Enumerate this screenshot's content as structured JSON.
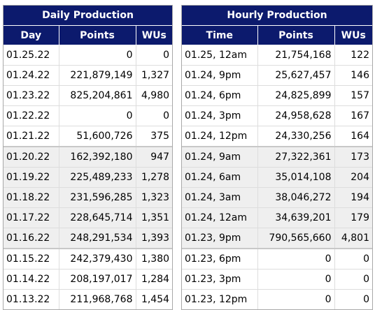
{
  "daily": {
    "title": "Daily Production",
    "columns": [
      "Day",
      "Points",
      "WUs"
    ],
    "rows": [
      {
        "day": "01.25.22",
        "points": "0",
        "wus": "0"
      },
      {
        "day": "01.24.22",
        "points": "221,879,149",
        "wus": "1,327"
      },
      {
        "day": "01.23.22",
        "points": "825,204,861",
        "wus": "4,980"
      },
      {
        "day": "01.22.22",
        "points": "0",
        "wus": "0"
      },
      {
        "day": "01.21.22",
        "points": "51,600,726",
        "wus": "375"
      },
      {
        "day": "01.20.22",
        "points": "162,392,180",
        "wus": "947"
      },
      {
        "day": "01.19.22",
        "points": "225,489,233",
        "wus": "1,278"
      },
      {
        "day": "01.18.22",
        "points": "231,596,285",
        "wus": "1,323"
      },
      {
        "day": "01.17.22",
        "points": "228,645,714",
        "wus": "1,351"
      },
      {
        "day": "01.16.22",
        "points": "248,291,534",
        "wus": "1,393"
      },
      {
        "day": "01.15.22",
        "points": "242,379,430",
        "wus": "1,380"
      },
      {
        "day": "01.14.22",
        "points": "208,197,017",
        "wus": "1,284"
      },
      {
        "day": "01.13.22",
        "points": "211,968,768",
        "wus": "1,454"
      }
    ]
  },
  "hourly": {
    "title": "Hourly Production",
    "columns": [
      "Time",
      "Points",
      "WUs"
    ],
    "rows": [
      {
        "time": "01.25, 12am",
        "points": "21,754,168",
        "wus": "122"
      },
      {
        "time": "01.24, 9pm",
        "points": "25,627,457",
        "wus": "146"
      },
      {
        "time": "01.24, 6pm",
        "points": "24,825,899",
        "wus": "157"
      },
      {
        "time": "01.24, 3pm",
        "points": "24,958,628",
        "wus": "167"
      },
      {
        "time": "01.24, 12pm",
        "points": "24,330,256",
        "wus": "164"
      },
      {
        "time": "01.24, 9am",
        "points": "27,322,361",
        "wus": "173"
      },
      {
        "time": "01.24, 6am",
        "points": "35,014,108",
        "wus": "204"
      },
      {
        "time": "01.24, 3am",
        "points": "38,046,272",
        "wus": "194"
      },
      {
        "time": "01.24, 12am",
        "points": "34,639,201",
        "wus": "179"
      },
      {
        "time": "01.23, 9pm",
        "points": "790,565,660",
        "wus": "4,801"
      },
      {
        "time": "01.23, 6pm",
        "points": "0",
        "wus": "0"
      },
      {
        "time": "01.23, 3pm",
        "points": "0",
        "wus": "0"
      },
      {
        "time": "01.23, 12pm",
        "points": "0",
        "wus": "0"
      }
    ]
  },
  "colors": {
    "header_bg": "#0c1a6d",
    "header_text": "#ffffff",
    "alt_row_bg": "#efefef"
  }
}
